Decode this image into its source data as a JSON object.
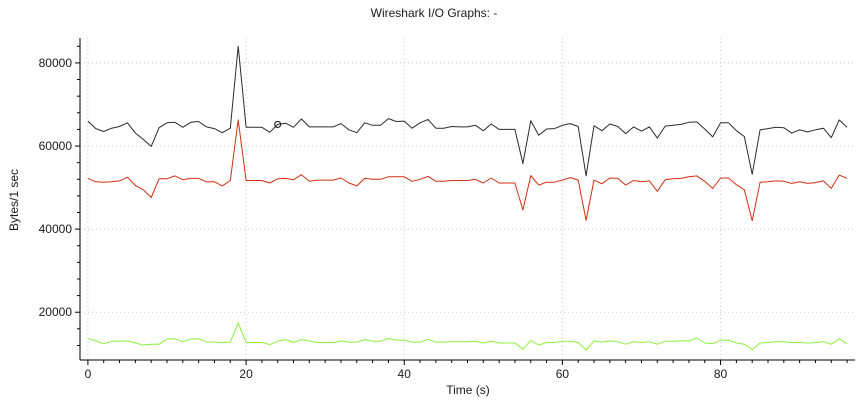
{
  "chart_data": {
    "type": "line",
    "title": "Wireshark I/O Graphs: -",
    "xlabel": "Time (s)",
    "ylabel": "Bytes/1 sec",
    "xlim": [
      -1,
      97
    ],
    "ylim": [
      8500,
      86000
    ],
    "xticks": [
      0,
      20,
      40,
      60,
      80
    ],
    "yticks": [
      20000,
      40000,
      60000,
      80000
    ],
    "grid": true,
    "colors": {
      "series_black": "#2b2b2b",
      "series_red": "#d42e12",
      "series_green": "#8cf03c",
      "grid": "#c8c8c8",
      "axis": "#000000"
    },
    "x": [
      0,
      1,
      2,
      3,
      4,
      5,
      6,
      7,
      8,
      9,
      10,
      11,
      12,
      13,
      14,
      15,
      16,
      17,
      18,
      19,
      20,
      21,
      22,
      23,
      24,
      25,
      26,
      27,
      28,
      29,
      30,
      31,
      32,
      33,
      34,
      35,
      36,
      37,
      38,
      39,
      40,
      41,
      42,
      43,
      44,
      45,
      46,
      47,
      48,
      49,
      50,
      51,
      52,
      53,
      54,
      55,
      56,
      57,
      58,
      59,
      60,
      61,
      62,
      63,
      64,
      65,
      66,
      67,
      68,
      69,
      70,
      71,
      72,
      73,
      74,
      75,
      76,
      77,
      78,
      79,
      80,
      81,
      82,
      83,
      84,
      85,
      86,
      87,
      88,
      89,
      90,
      91,
      92,
      93,
      94,
      95,
      96
    ],
    "series": [
      {
        "color": "#2b2b2b",
        "values": [
          66000,
          64200,
          63500,
          64300,
          64700,
          65600,
          63100,
          61600,
          59900,
          64400,
          65600,
          65700,
          64500,
          65700,
          65900,
          64600,
          64200,
          63200,
          64300,
          84000,
          64500,
          64500,
          64500,
          63300,
          65200,
          65500,
          64500,
          66500,
          64600,
          64600,
          64600,
          64600,
          65400,
          63900,
          63200,
          65600,
          65000,
          65000,
          66600,
          65900,
          66000,
          64300,
          65600,
          66400,
          64300,
          64300,
          64700,
          64600,
          64600,
          65000,
          63700,
          65300,
          64000,
          64000,
          64000,
          55800,
          66100,
          62600,
          64100,
          64200,
          65000,
          65400,
          64700,
          52800,
          64900,
          63700,
          65300,
          64700,
          63000,
          64600,
          63600,
          64600,
          61900,
          64800,
          65000,
          65200,
          65700,
          65800,
          64100,
          62200,
          65600,
          65600,
          63700,
          62300,
          53200,
          63900,
          64200,
          64500,
          64400,
          63100,
          63900,
          63400,
          63900,
          64300,
          62000,
          66300,
          64500
        ]
      },
      {
        "color": "#d42e12",
        "values": [
          52200,
          51400,
          51300,
          51400,
          51600,
          52500,
          50500,
          49500,
          47600,
          52100,
          52100,
          52800,
          51900,
          52200,
          52200,
          51400,
          51400,
          50400,
          51700,
          66300,
          51700,
          51700,
          51700,
          51100,
          52100,
          52200,
          51900,
          53100,
          51500,
          51800,
          51800,
          51800,
          52300,
          51100,
          50400,
          52200,
          52000,
          52000,
          52600,
          52600,
          52600,
          51500,
          52000,
          52700,
          51500,
          51500,
          51700,
          51700,
          51700,
          52000,
          51100,
          52300,
          51100,
          51100,
          51100,
          44600,
          52900,
          50600,
          51300,
          51300,
          51800,
          52400,
          51800,
          42100,
          51800,
          50900,
          52300,
          52200,
          50600,
          51700,
          51400,
          51600,
          49100,
          51900,
          52100,
          52200,
          52600,
          52800,
          51500,
          49800,
          52300,
          52300,
          50700,
          49500,
          42000,
          51300,
          51400,
          51600,
          51500,
          51000,
          51400,
          51000,
          51200,
          51600,
          49800,
          53000,
          52200
        ]
      },
      {
        "color": "#8cf03c",
        "values": [
          13700,
          13100,
          12400,
          13000,
          13000,
          13100,
          12600,
          12100,
          12300,
          12300,
          13500,
          13600,
          12900,
          13500,
          13600,
          12800,
          12800,
          12700,
          12800,
          17400,
          12700,
          12700,
          12700,
          12200,
          13000,
          13400,
          12700,
          13400,
          13100,
          12700,
          12700,
          12700,
          13100,
          12800,
          12800,
          13400,
          13000,
          13000,
          13700,
          13300,
          13300,
          12800,
          12800,
          13500,
          12800,
          12800,
          12900,
          12900,
          12900,
          13000,
          12600,
          13000,
          12600,
          12600,
          12600,
          11100,
          13200,
          12100,
          12700,
          12700,
          13000,
          13000,
          12700,
          10900,
          13100,
          12800,
          13100,
          12900,
          12300,
          12900,
          12700,
          12900,
          12300,
          13000,
          13000,
          13100,
          13100,
          13800,
          12600,
          12400,
          13300,
          13300,
          12600,
          12300,
          11000,
          12600,
          12700,
          12900,
          12900,
          12700,
          12700,
          12600,
          12700,
          12900,
          12300,
          13600,
          12400
        ]
      }
    ]
  }
}
